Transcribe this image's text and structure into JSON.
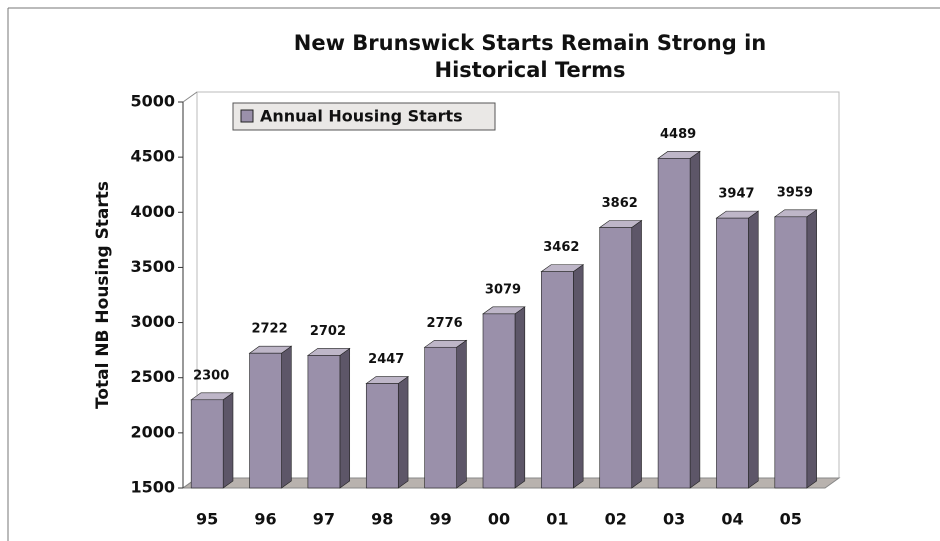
{
  "chart_data": {
    "type": "bar",
    "title": "New Brunswick Starts Remain Strong in Historical Terms",
    "y_label": "Total NB Housing Starts",
    "categories": [
      "95",
      "96",
      "97",
      "98",
      "99",
      "00",
      "01",
      "02",
      "03",
      "04",
      "05"
    ],
    "series": [
      {
        "name": "Annual Housing Starts",
        "color": "#9a90aa",
        "values": [
          2300,
          2722,
          2702,
          2447,
          2776,
          3079,
          3462,
          3862,
          4489,
          3947,
          3959
        ]
      }
    ],
    "ylim": [
      1500,
      5000
    ],
    "yticks": [
      1500,
      2000,
      2500,
      3000,
      3500,
      4000,
      4500,
      5000
    ],
    "legend": "top-left"
  }
}
